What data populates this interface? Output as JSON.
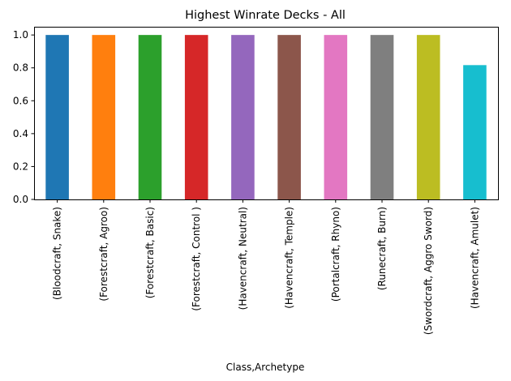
{
  "chart_data": {
    "type": "bar",
    "title": "Highest Winrate Decks - All",
    "xlabel": "Class,Archetype",
    "ylabel": "",
    "ylim": [
      0,
      1.05
    ],
    "yticks": [
      "0.0",
      "0.2",
      "0.4",
      "0.6",
      "0.8",
      "1.0"
    ],
    "grid": false,
    "legend": "none",
    "categories": [
      "(Bloodcraft, Snake)",
      "(Forestcraft, Agroo)",
      "(Forestcraft, Basic)",
      "(Forestcraft, Control )",
      "(Havencraft, Neutral)",
      "(Havencraft, Temple)",
      "(Portalcraft, Rhyno)",
      "(Runecraft, Burn)",
      "(Swordcraft, Aggro Sword)",
      "(Havencraft, Amulet)"
    ],
    "values": [
      1.0,
      1.0,
      1.0,
      1.0,
      1.0,
      1.0,
      1.0,
      1.0,
      1.0,
      0.8167
    ],
    "colors": [
      "#1f77b4",
      "#ff7f0e",
      "#2ca02c",
      "#d62728",
      "#9467bd",
      "#8c564b",
      "#e377c2",
      "#7f7f7f",
      "#bcbd22",
      "#17becf"
    ]
  }
}
